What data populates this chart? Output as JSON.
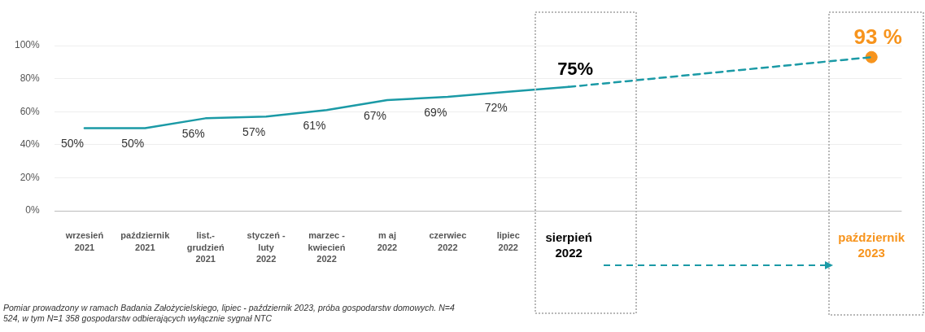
{
  "chart_data": {
    "type": "line",
    "categories": [
      "wrzesień\n2021",
      "październik\n2021",
      "list.-\ngrudzień\n2021",
      "styczeń -\nluty\n2022",
      "marzec -\nkwiecień\n2022",
      "m aj\n2022",
      "czerwiec\n2022",
      "lipiec\n2022",
      "sierpień\n2022",
      null,
      null,
      null,
      null,
      "październik\n2023"
    ],
    "series": [
      {
        "color": "#1b9aa6",
        "line_style": "solid",
        "values": [
          50,
          50,
          56,
          57,
          61,
          67,
          69,
          72,
          75,
          null,
          null,
          null,
          null,
          null
        ],
        "value_labels": [
          "50%",
          "50%",
          "56%",
          "57%",
          "61%",
          "67%",
          "69%",
          "72%",
          "75%",
          null,
          null,
          null,
          null,
          null
        ]
      },
      {
        "color": "#1b9aa6",
        "line_style": "dashed",
        "values": [
          null,
          null,
          null,
          null,
          null,
          null,
          null,
          null,
          75,
          null,
          null,
          null,
          null,
          93
        ]
      },
      {
        "type": "scatter",
        "color": "#f7941d",
        "marker": "circle",
        "values": [
          null,
          null,
          null,
          null,
          null,
          null,
          null,
          null,
          null,
          null,
          null,
          null,
          null,
          93
        ],
        "value_labels": [
          null,
          null,
          null,
          null,
          null,
          null,
          null,
          null,
          null,
          null,
          null,
          null,
          null,
          "93 %"
        ]
      }
    ],
    "ylim": [
      0,
      100
    ],
    "yticks": [
      {
        "value": 0,
        "label": "0%"
      },
      {
        "value": 20,
        "label": "20%"
      },
      {
        "value": 40,
        "label": "40%"
      },
      {
        "value": 60,
        "label": "60%"
      },
      {
        "value": 80,
        "label": "80%"
      },
      {
        "value": 100,
        "label": "100%"
      }
    ],
    "grid": "y",
    "legend": false,
    "annotations": [
      "Pomiar prowadzony w ramach Badania Założycielskiego, lipiec - październik 2023, próba gospodarstw domowych. N=4 524, w tym N=1 358 gospodarstw odbierających wyłącznie sygnał NTC"
    ]
  }
}
